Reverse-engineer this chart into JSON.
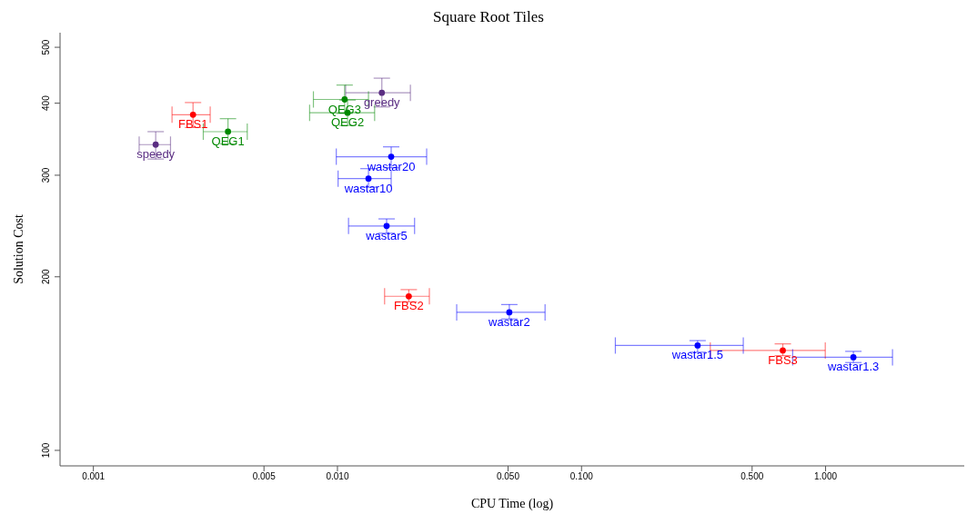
{
  "chart_data": {
    "type": "scatter",
    "title": "Square Root Tiles",
    "xlabel": "CPU Time (log)",
    "ylabel": "Solution Cost",
    "log": "xy",
    "marker": "circle",
    "xlim": [
      0.00073,
      3.7
    ],
    "ylim": [
      94,
      530
    ],
    "xticks": [
      0.001,
      0.005,
      {
        "value": 0.01,
        "label": "0.010"
      },
      {
        "value": 0.05,
        "label": "0.050"
      },
      {
        "value": 0.1,
        "label": "0.100"
      },
      {
        "value": 0.5,
        "label": "0.500"
      },
      {
        "value": 1,
        "label": "1.000"
      }
    ],
    "yticks": [
      100,
      200,
      300,
      400,
      500
    ],
    "series": [
      {
        "color": "#5a2d82",
        "x": [
          0.0018,
          0.0152
        ],
        "values": [
          339,
          417
        ],
        "errors": [
          [
            320,
            357
          ],
          [
            394,
            442
          ]
        ],
        "xerrors": [
          [
            0.00154,
            0.00207
          ],
          [
            0.0108,
            0.0199
          ]
        ]
      },
      {
        "color": "#ff0000",
        "x": [
          0.00256,
          0.0196,
          0.668
        ],
        "values": [
          382,
          185,
          149
        ],
        "errors": [
          [
            363,
            401
          ],
          [
            181,
            190
          ],
          [
            146,
            153
          ]
        ],
        "xerrors": [
          [
            0.0021,
            0.00301
          ],
          [
            0.0156,
            0.0238
          ],
          [
            0.337,
            0.997
          ]
        ]
      },
      {
        "color": "#008800",
        "x": [
          0.00356,
          0.0107,
          0.011
        ],
        "values": [
          357,
          406,
          385
        ],
        "errors": [
          [
            340,
            376
          ],
          [
            384,
            430
          ],
          [
            366,
            405
          ]
        ],
        "xerrors": [
          [
            0.00282,
            0.00427
          ],
          [
            0.00797,
            0.0134
          ],
          [
            0.00769,
            0.0142
          ]
        ]
      },
      {
        "color": "#0000ff",
        "x": [
          0.0166,
          0.0134,
          0.0159,
          0.0506,
          0.299,
          1.3
        ],
        "values": [
          323,
          296,
          245,
          173.5,
          152,
          145
        ],
        "errors": [
          [
            309,
            336
          ],
          [
            286,
            308
          ],
          [
            238,
            252
          ],
          [
            169,
            179
          ],
          [
            148,
            155
          ],
          [
            142,
            148.5
          ]
        ],
        "xerrors": [
          [
            0.00989,
            0.0232
          ],
          [
            0.01006,
            0.0166
          ],
          [
            0.0111,
            0.0207
          ],
          [
            0.0308,
            0.0709
          ],
          [
            0.1376,
            0.46
          ],
          [
            0.733,
            1.88
          ]
        ]
      }
    ],
    "annotations": [
      {
        "text": "speedy",
        "x": 0.0018,
        "y": 339
      },
      {
        "text": "greedy",
        "x": 0.0152,
        "y": 417
      },
      {
        "text": "FBS1",
        "x": 0.00256,
        "y": 382
      },
      {
        "text": "FBS2",
        "x": 0.0196,
        "y": 185
      },
      {
        "text": "FBS3",
        "x": 0.668,
        "y": 149
      },
      {
        "text": "QEG1",
        "x": 0.00356,
        "y": 357
      },
      {
        "text": "QEG3",
        "x": 0.0107,
        "y": 406
      },
      {
        "text": "QEG2",
        "x": 0.011,
        "y": 385
      },
      {
        "text": "wastar20",
        "x": 0.0166,
        "y": 323
      },
      {
        "text": "wastar10",
        "x": 0.0134,
        "y": 296
      },
      {
        "text": "wastar5",
        "x": 0.0159,
        "y": 245
      },
      {
        "text": "wastar2",
        "x": 0.0506,
        "y": 173.5
      },
      {
        "text": "wastar1.5",
        "x": 0.299,
        "y": 152
      },
      {
        "text": "wastar1.3",
        "x": 1.3,
        "y": 145
      }
    ]
  }
}
